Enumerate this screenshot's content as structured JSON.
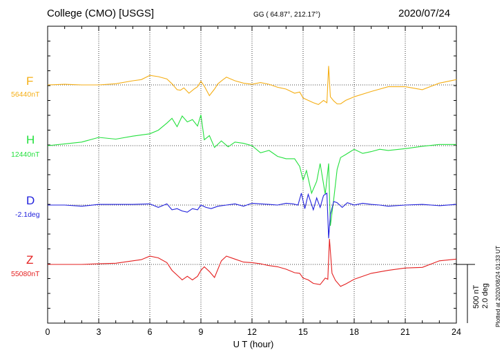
{
  "header": {
    "station": "College (CMO)  [USGS]",
    "coords": "GG ( 64.87°, 212.17°)",
    "date": "2020/07/24"
  },
  "channels": [
    {
      "letter": "F",
      "baseline": "56440nT",
      "color": "#f5ae14"
    },
    {
      "letter": "H",
      "baseline": "12440nT",
      "color": "#22e03c"
    },
    {
      "letter": "D",
      "baseline": "-2.1deg",
      "color": "#1e1edc"
    },
    {
      "letter": "Z",
      "baseline": "55080nT",
      "color": "#e41e1e"
    }
  ],
  "scale": {
    "nT": "500 nT",
    "deg": "2.0 deg"
  },
  "plotted": "Plotted at 2020/08/24 01:33 UT",
  "chart_data": {
    "type": "line",
    "xlabel": "U T (hour)",
    "xlim": [
      0,
      24
    ],
    "xticks": [
      "0",
      "3",
      "6",
      "9",
      "12",
      "15",
      "18",
      "21",
      "24"
    ],
    "grid": true,
    "series": [
      {
        "name": "F",
        "unit": "nT offset from 56440nT",
        "x": [
          0,
          1,
          2,
          3,
          4,
          5,
          5.5,
          6,
          6.5,
          7,
          7.3,
          7.6,
          7.8,
          8,
          8.3,
          8.6,
          8.8,
          9,
          9.2,
          9.5,
          9.8,
          10,
          10.3,
          10.5,
          11,
          11.5,
          12,
          12.5,
          13,
          13.5,
          14,
          14.5,
          14.8,
          15,
          15.3,
          15.6,
          15.9,
          16.2,
          16.4,
          16.5,
          16.6,
          16.8,
          17,
          17.2,
          17.5,
          18,
          19,
          20,
          21,
          22,
          23,
          24
        ],
        "y": [
          0,
          10,
          0,
          0,
          20,
          70,
          90,
          160,
          140,
          100,
          20,
          -80,
          -90,
          -50,
          -140,
          -70,
          -30,
          60,
          -20,
          -180,
          -70,
          20,
          90,
          130,
          70,
          30,
          10,
          40,
          10,
          -40,
          -70,
          -140,
          -120,
          -220,
          -260,
          -300,
          -330,
          -260,
          -300,
          320,
          -200,
          -270,
          -320,
          -320,
          -260,
          -200,
          -110,
          -30,
          -30,
          -80,
          30,
          90
        ]
      },
      {
        "name": "H",
        "unit": "nT offset from 12440nT",
        "x": [
          0,
          1,
          2,
          3,
          4,
          5,
          6,
          6.5,
          7,
          7.3,
          7.6,
          7.9,
          8.2,
          8.5,
          8.8,
          9,
          9.2,
          9.5,
          9.8,
          10.2,
          10.6,
          11,
          11.5,
          12,
          12.5,
          13,
          13.5,
          14,
          14.5,
          14.8,
          15,
          15.2,
          15.5,
          15.8,
          16,
          16.3,
          16.5,
          16.6,
          16.8,
          17,
          17.2,
          17.5,
          18,
          18.5,
          19,
          19.5,
          20,
          21,
          22,
          23,
          24
        ],
        "y": [
          0,
          30,
          60,
          140,
          110,
          160,
          200,
          260,
          380,
          460,
          320,
          500,
          400,
          440,
          330,
          520,
          100,
          170,
          -30,
          80,
          -20,
          60,
          40,
          0,
          -120,
          -80,
          -180,
          -220,
          -220,
          -350,
          -580,
          -420,
          -800,
          -600,
          -300,
          -820,
          -300,
          -1350,
          -900,
          -400,
          -200,
          -150,
          -60,
          -130,
          -100,
          -60,
          -80,
          -50,
          -10,
          20,
          20
        ]
      },
      {
        "name": "D",
        "unit": "deg offset from -2.1deg",
        "x": [
          0,
          1,
          2,
          3,
          4,
          5,
          6,
          6.5,
          7,
          7.3,
          7.6,
          7.9,
          8.2,
          8.5,
          8.8,
          9,
          9.3,
          9.6,
          10,
          10.5,
          11,
          11.5,
          12,
          12.5,
          13,
          13.5,
          14,
          14.4,
          14.7,
          14.9,
          15.1,
          15.3,
          15.6,
          15.8,
          16,
          16.2,
          16.4,
          16.5,
          16.6,
          16.8,
          17,
          17.3,
          17.6,
          18,
          18.5,
          19,
          19.5,
          20,
          21,
          22,
          23,
          24
        ],
        "y": [
          0,
          0,
          -0.1,
          0.05,
          0.05,
          0.05,
          0.1,
          -0.2,
          0.1,
          -0.4,
          -0.3,
          -0.5,
          -0.6,
          -0.3,
          -0.4,
          0,
          -0.2,
          -0.3,
          -0.1,
          0,
          0.1,
          -0.1,
          0.15,
          0.1,
          0.05,
          0,
          0.15,
          0.1,
          0,
          1.0,
          -0.3,
          0.9,
          -0.4,
          0.6,
          -0.2,
          0.8,
          1.0,
          -2.8,
          -0.8,
          0.3,
          0.2,
          -0.2,
          0.2,
          0,
          0.15,
          0.05,
          0,
          -0.1,
          0,
          0.05,
          -0.05,
          0.05
        ]
      },
      {
        "name": "Z",
        "unit": "nT offset from 55080nT",
        "x": [
          0,
          1,
          2,
          3,
          4,
          5,
          5.5,
          6,
          6.5,
          7,
          7.3,
          7.6,
          7.9,
          8.2,
          8.5,
          8.8,
          9,
          9.2,
          9.5,
          9.8,
          10.2,
          10.5,
          11,
          11.5,
          12,
          12.5,
          13,
          13.5,
          14,
          14.5,
          14.8,
          15,
          15.3,
          15.6,
          16,
          16.3,
          16.45,
          16.55,
          16.7,
          16.9,
          17.2,
          17.5,
          18,
          19,
          20,
          21,
          22,
          23,
          24
        ],
        "y": [
          0,
          0,
          0,
          10,
          20,
          60,
          80,
          140,
          110,
          30,
          -100,
          -180,
          -260,
          -200,
          -260,
          -200,
          -100,
          -40,
          -120,
          -220,
          60,
          140,
          90,
          40,
          30,
          10,
          -20,
          -40,
          -80,
          -140,
          -150,
          -230,
          -260,
          -320,
          -340,
          -230,
          -250,
          430,
          -150,
          -270,
          -370,
          -330,
          -250,
          -150,
          -100,
          -60,
          -50,
          60,
          90
        ]
      }
    ]
  }
}
